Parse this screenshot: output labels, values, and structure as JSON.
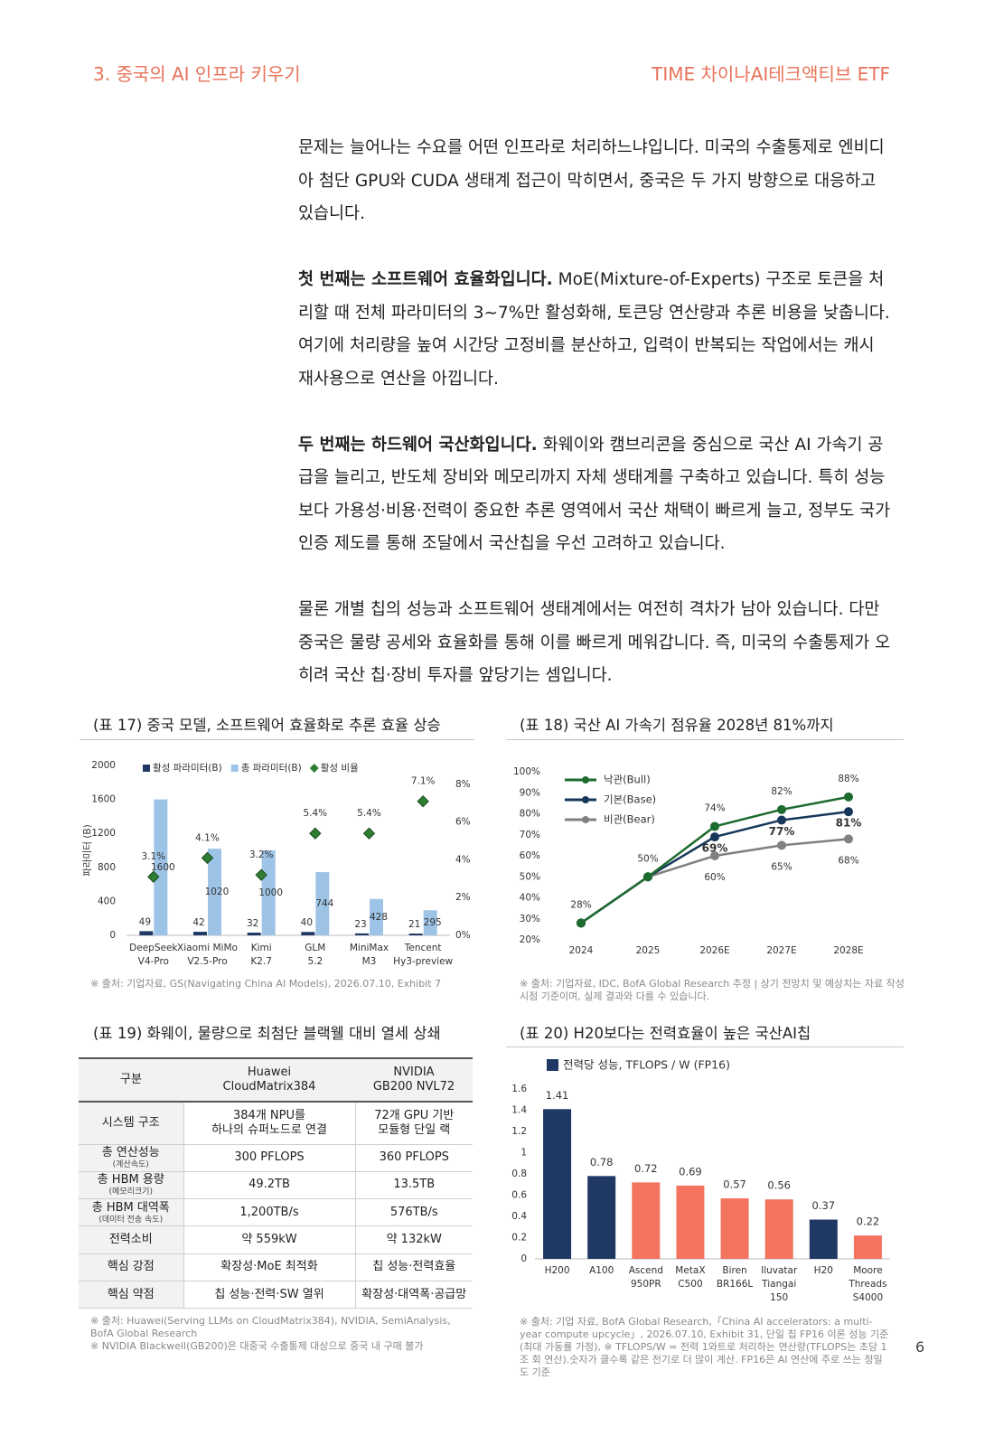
{
  "header": {
    "left": "3. 중국의 AI 인프라 키우기",
    "right": "TIME 차이나AI테크액티브 ETF"
  },
  "paragraphs": [
    {
      "text": "문제는 늘어나는 수요를 어떤 인프라로 처리하느냐입니다. 미국의 수출통제로 엔비디아 첨단 GPU와 CUDA 생태계 접근이 막히면서, 중국은 두 가지 방향으로 대응하고 있습니다."
    },
    {
      "lead": "첫 번째는 소프트웨어 효율화입니다.",
      "text": "MoE(Mixture-of-Experts) 구조로 토큰을 처리할 때 전체 파라미터의 3~7%만 활성화해, 토큰당 연산량과 추론 비용을 낮춥니다. 여기에 처리량을 높여 시간당 고정비를 분산하고, 입력이 반복되는 작업에서는 캐시 재사용으로 연산을 아낍니다."
    },
    {
      "lead": "두 번째는 하드웨어 국산화입니다.",
      "text": "화웨이와 캠브리콘을 중심으로 국산 AI 가속기 공급을 늘리고, 반도체 장비와 메모리까지 자체 생태계를 구축하고 있습니다. 특히 성능보다 가용성·비용·전력이 중요한 추론 영역에서 국산 채택이 빠르게 늘고, 정부도 국가 인증 제도를 통해 조달에서 국산칩을 우선 고려하고 있습니다."
    },
    {
      "text": "물론 개별 칩의 성능과 소프트웨어 생태계에서는 여전히 격차가 남아 있습니다. 다만 중국은 물량 공세와 효율화를 통해 이를 빠르게 메워갑니다. 즉, 미국의 수출통제가 오히려 국산 칩·장비 투자를 앞당기는 셈입니다."
    }
  ],
  "chart_data": [
    {
      "type": "combo",
      "title": "(표 17) 중국 모델, 소프트웨어 효율화로 추론 효율 상승",
      "ylabel": "파라미터 (B)",
      "categories": [
        [
          "DeepSeek",
          "V4-Pro"
        ],
        [
          "Xiaomi MiMo",
          "V2.5-Pro"
        ],
        [
          "Kimi",
          "K2.7"
        ],
        [
          "GLM",
          "5.2"
        ],
        [
          "MiniMax",
          "M3"
        ],
        [
          "Tencent",
          "Hy3-preview"
        ]
      ],
      "series": [
        {
          "name": "활성 파라미터(B)",
          "color": "#1f3864",
          "values": [
            49,
            42,
            32,
            40,
            23,
            21
          ]
        },
        {
          "name": "총 파라미터(B)",
          "color": "#9dc3e6",
          "values": [
            1600,
            1020,
            1000,
            744,
            428,
            295
          ]
        },
        {
          "name": "활성 비율",
          "color": "#2e7d32",
          "axis": "y2",
          "values": [
            3.1,
            4.1,
            3.2,
            5.4,
            5.4,
            7.1
          ],
          "value_labels": [
            "3.1%",
            "4.1%",
            "3.2%",
            "5.4%",
            "5.4%",
            "7.1%"
          ]
        }
      ],
      "ylim": [
        0,
        2000
      ],
      "yticks": [
        0,
        400,
        800,
        1200,
        1600,
        2000
      ],
      "y2lim": [
        0,
        9
      ],
      "y2ticks": [
        {
          "value": 0,
          "label": "0%"
        },
        {
          "value": 2,
          "label": "2%"
        },
        {
          "value": 4,
          "label": "4%"
        },
        {
          "value": 6,
          "label": "6%"
        },
        {
          "value": 8,
          "label": "8%"
        }
      ],
      "grid": false,
      "source": "※ 출처: 기업자료, GS(Navigating China AI Models), 2026.07.10, Exhibit 7"
    },
    {
      "type": "line",
      "title": "(표 18) 국산 AI 가속기 점유율 2028년 81%까지",
      "categories": [
        "2024",
        "2025",
        "2026E",
        "2027E",
        "2028E"
      ],
      "series": [
        {
          "name": "낙관(Bull)",
          "color": "#1e6b2e",
          "values": [
            28,
            50,
            74,
            82,
            88
          ],
          "value_labels": [
            "28%",
            "50%",
            "74%",
            "82%",
            "88%"
          ]
        },
        {
          "name": "기본(Base)",
          "color": "#16375a",
          "values": [
            28,
            50,
            69,
            77,
            81
          ],
          "value_labels": [
            null,
            null,
            "69%",
            "77%",
            "81%"
          ],
          "bold_labels": true
        },
        {
          "name": "비관(Bear)",
          "color": "#808080",
          "values": [
            28,
            50,
            60,
            65,
            68
          ],
          "value_labels": [
            null,
            null,
            "60%",
            "65%",
            "68%"
          ]
        }
      ],
      "ylim": [
        20,
        100
      ],
      "yticks": [
        {
          "value": 20,
          "label": "20%"
        },
        {
          "value": 30,
          "label": "30%"
        },
        {
          "value": 40,
          "label": "40%"
        },
        {
          "value": 50,
          "label": "50%"
        },
        {
          "value": 60,
          "label": "60%"
        },
        {
          "value": 70,
          "label": "70%"
        },
        {
          "value": 80,
          "label": "80%"
        },
        {
          "value": 90,
          "label": "90%"
        },
        {
          "value": 100,
          "label": "100%"
        }
      ],
      "grid": false,
      "legend": "top-left",
      "source": "※ 출처: 기업자료, IDC, BofA Global Research 추정  |  상기 전망치 및 예상치는 자료 작성 시점 기준이며, 실제 결과와 다를 수 있습니다."
    },
    {
      "type": "bar",
      "title": "(표 20) H20보다는 전력효율이 높은 국산AI칩",
      "categories": [
        [
          "H200"
        ],
        [
          "A100"
        ],
        [
          "Ascend",
          "950PR"
        ],
        [
          "MetaX",
          "C500"
        ],
        [
          "Biren",
          "BR166L"
        ],
        [
          "Iluvatar",
          "Tiangai",
          "150"
        ],
        [
          "H20"
        ],
        [
          "Moore",
          "Threads",
          "S4000"
        ]
      ],
      "series": [
        {
          "name": "전력당 성능, TFLOPS / W (FP16)",
          "color": "#1f3864",
          "values": [
            1.41,
            0.78,
            0.72,
            0.69,
            0.57,
            0.56,
            0.37,
            0.22
          ],
          "bar_colors": [
            "#1f3864",
            "#1f3864",
            "#f4735f",
            "#f4735f",
            "#f4735f",
            "#f4735f",
            "#1f3864",
            "#f4735f"
          ]
        }
      ],
      "ylim": [
        0,
        1.6
      ],
      "yticks": [
        0,
        0.2,
        0.4,
        0.6,
        0.8,
        1,
        1.2,
        1.4,
        1.6
      ],
      "grid": false,
      "source": "※ 출처: 기업 자료, BofA Global Research,「China AI accelerators: a multi-year compute upcycle」, 2026.07.10, Exhibit 31, 단일 칩 FP16 이론 성능 기준(최대 가동률 가정), ※ TFLOPS/W = 전력 1와트로 처리하는 연산량(TFLOPS는 초당 1조 회 연산).숫자가 클수록 같은 전기로 더 많이 계산. FP16은 AI 연산에 주로 쓰는 정밀도 기준"
    }
  ],
  "table": {
    "title": "(표 19) 화웨이, 물량으로 최첨단 블랙웰 대비 열세 상쇄",
    "columns": [
      "구분",
      "Huawei\nCloudMatrix384",
      "NVIDIA\nGB200 NVL72"
    ],
    "rows": [
      {
        "label": "시스템 구조",
        "cells": [
          "384개 NPU를\n하나의 슈퍼노드로 연결",
          "72개 GPU 기반\n모듈형 단일 랙"
        ]
      },
      {
        "label": "총 연산성능",
        "note": "(계산속도)",
        "cells": [
          "300 PFLOPS",
          "360 PFLOPS"
        ]
      },
      {
        "label": "총 HBM 용량",
        "note": "(메모리크기)",
        "cells": [
          "49.2TB",
          "13.5TB"
        ]
      },
      {
        "label": "총 HBM 대역폭",
        "note": "(데이터 전송 속도)",
        "cells": [
          "1,200TB/s",
          "576TB/s"
        ]
      },
      {
        "label": "전력소비",
        "cells": [
          "약 559kW",
          "약 132kW"
        ]
      },
      {
        "label": "핵심 강점",
        "cells": [
          "확장성·MoE 최적화",
          "칩 성능·전력효율"
        ]
      },
      {
        "label": "핵심 약점",
        "cells": [
          "칩 성능·전력·SW 열위",
          "확장성·대역폭·공급망"
        ]
      }
    ],
    "notes": [
      "※ 출처: Huawei(Serving LLMs on CloudMatrix384), NVIDIA, SemiAnalysis, BofA Global Research",
      "※ NVIDIA Blackwell(GB200)은 대중국 수출통제 대상으로 중국 내 구매 불가"
    ]
  },
  "page_number": "6"
}
